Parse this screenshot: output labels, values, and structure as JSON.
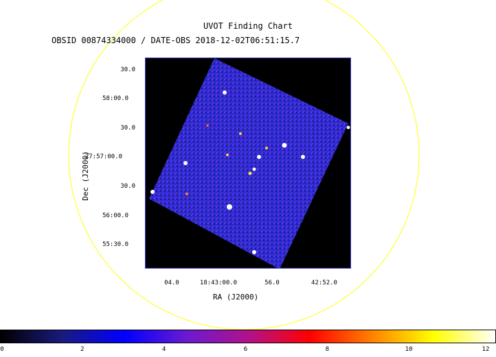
{
  "title": "UVOT Finding Chart",
  "subtitle": "OBSID 00874334000 / DATE-OBS 2018-12-02T06:51:15.7",
  "axes": {
    "xlabel": "RA (J2000)",
    "ylabel": "Dec (J2000)",
    "x_ticks": [
      "04.0",
      "18:43:00.0",
      "56.0",
      "42:52.0"
    ],
    "y_ticks": [
      "30.0",
      "58:00.0",
      "30.0",
      "27:57:00.0",
      "30.0",
      "56:00.0",
      "55:30.0"
    ]
  },
  "colorbar": {
    "ticks": [
      "0",
      "2",
      "4",
      "6",
      "8",
      "10",
      "12"
    ],
    "range": [
      0,
      12
    ],
    "colormap": [
      "#000000",
      "#1a1a80",
      "#0000ff",
      "#6a1ad0",
      "#b0128c",
      "#ff0000",
      "#ff8000",
      "#ffff00",
      "#ffffff"
    ]
  },
  "colors": {
    "field_circle": "#ffff33",
    "image_border": "#3838c8",
    "image_background": "#000000"
  }
}
